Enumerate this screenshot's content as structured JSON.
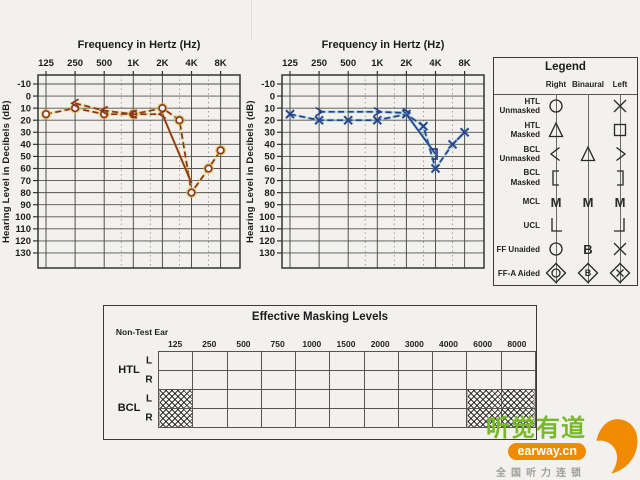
{
  "page": {
    "background": "#f2f1ed"
  },
  "chart_data": [
    {
      "type": "line",
      "name": "right-ear-audiogram",
      "title": "Frequency in Hertz (Hz)",
      "ylabel": "Hearing Level in Decibels (dB)",
      "x_ticks": [
        "125",
        "250",
        "500",
        "1K",
        "2K",
        "4K",
        "8K"
      ],
      "x_tick_freqs": [
        125,
        250,
        500,
        1000,
        2000,
        4000,
        8000
      ],
      "half_octaves": [
        750,
        1500,
        3000,
        6000
      ],
      "y_min": -10,
      "y_max": 130,
      "y_step": 10,
      "color": "#8e3220",
      "halo": "#d3c23c",
      "series": [
        {
          "name": "HTL unmasked right (air conduction)",
          "symbol": "circle",
          "dash": true,
          "points": [
            [
              125,
              15
            ],
            [
              250,
              10
            ],
            [
              500,
              15
            ],
            [
              1000,
              15
            ],
            [
              2000,
              10
            ],
            [
              3000,
              20
            ],
            [
              4000,
              80
            ],
            [
              6000,
              60
            ],
            [
              8000,
              45
            ]
          ]
        },
        {
          "name": "BCL unmasked right (bone conduction)",
          "symbol": "chevron-left",
          "dash": true,
          "points": [
            [
              250,
              6
            ],
            [
              500,
              12
            ],
            [
              1000,
              15
            ],
            [
              2000,
              15
            ]
          ]
        },
        {
          "name": "BCL right high-frequency descent",
          "symbol": "none",
          "dash": false,
          "points": [
            [
              2000,
              15
            ],
            [
              4000,
              72
            ]
          ]
        }
      ]
    },
    {
      "type": "line",
      "name": "left-ear-audiogram",
      "title": "Frequency in Hertz (Hz)",
      "ylabel": "Hearing Level in Decibels (dB)",
      "x_ticks": [
        "125",
        "250",
        "500",
        "1K",
        "2K",
        "4K",
        "8K"
      ],
      "x_tick_freqs": [
        125,
        250,
        500,
        1000,
        2000,
        4000,
        8000
      ],
      "half_octaves": [
        750,
        1500,
        3000,
        6000
      ],
      "y_min": -10,
      "y_max": 130,
      "y_step": 10,
      "color": "#2b3f8e",
      "halo": "#5bb8c4",
      "series": [
        {
          "name": "HTL unmasked left (air conduction)",
          "symbol": "x",
          "dash": true,
          "points": [
            [
              125,
              15
            ],
            [
              250,
              20
            ],
            [
              500,
              20
            ],
            [
              1000,
              20
            ],
            [
              2000,
              15
            ],
            [
              3000,
              25
            ],
            [
              4000,
              60
            ],
            [
              6000,
              40
            ],
            [
              8000,
              30
            ]
          ]
        },
        {
          "name": "BCL unmasked left (bone conduction)",
          "symbol": "chevron-right",
          "dash": true,
          "points": [
            [
              250,
              13
            ],
            [
              1000,
              13
            ],
            [
              2000,
              14
            ]
          ]
        },
        {
          "name": "BCL masked left descent",
          "symbol": "none",
          "dash": false,
          "points": [
            [
              2000,
              15
            ],
            [
              4000,
              48
            ]
          ],
          "end_symbol": "bracket-right"
        }
      ]
    }
  ],
  "legend": {
    "title": "Legend",
    "columns": [
      "Right",
      "Binaural",
      "Left"
    ],
    "rows": [
      {
        "label": "HTL Unmasked",
        "symbols": [
          "circle",
          "",
          "x"
        ]
      },
      {
        "label": "HTL Masked",
        "symbols": [
          "triangle",
          "",
          "square"
        ]
      },
      {
        "label": "BCL Unmasked",
        "symbols": [
          "chevron-left",
          "triangle",
          "chevron-right"
        ]
      },
      {
        "label": "BCL Masked",
        "symbols": [
          "bracket-left",
          "",
          "bracket-right"
        ]
      },
      {
        "label": "MCL",
        "symbols": [
          "M",
          "M",
          "M"
        ]
      },
      {
        "label": "UCL",
        "symbols": [
          "ucl-left",
          "",
          "ucl-right"
        ]
      },
      {
        "label": "FF Unaided",
        "symbols": [
          "circle",
          "B",
          "x"
        ]
      },
      {
        "label": "FF-A Aided",
        "symbols": [
          "diamond-circle",
          "diamond-B",
          "diamond-x"
        ]
      }
    ]
  },
  "masking_table": {
    "title": "Effective Masking Levels",
    "corner_label": "Non-Test Ear",
    "columns": [
      "125",
      "250",
      "500",
      "750",
      "1000",
      "1500",
      "2000",
      "3000",
      "4000",
      "6000",
      "8000"
    ],
    "row_groups": [
      {
        "label": "HTL",
        "rows": [
          "L",
          "R"
        ],
        "hatched_columns": []
      },
      {
        "label": "BCL",
        "rows": [
          "L",
          "R"
        ],
        "hatched_columns": [
          0,
          9,
          10
        ]
      }
    ]
  },
  "watermark": {
    "brand": "听觉有道",
    "domain": "earway.cn",
    "tagline": "全国听力连锁",
    "green": "#79b829",
    "orange": "#f08a00",
    "gray": "#a0a09a"
  }
}
